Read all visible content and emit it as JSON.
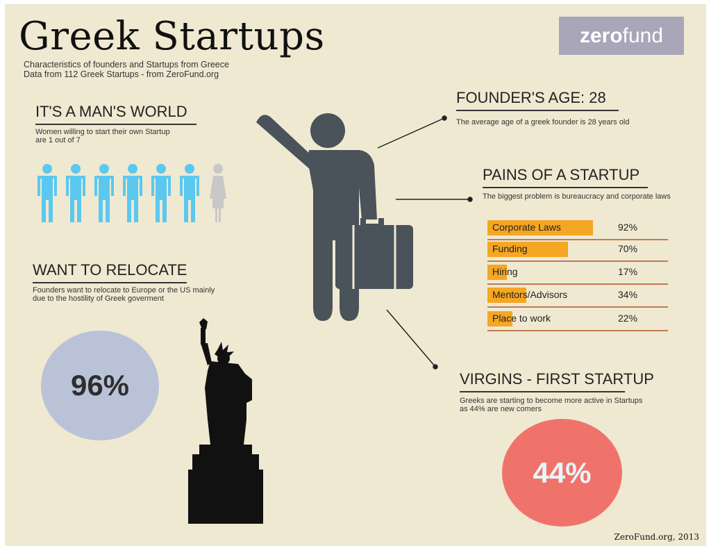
{
  "header": {
    "title": "Greek Startups",
    "subtitle_line1": "Characteristics of founders and Startups from Greece",
    "subtitle_line2": "Data from 112 Greek Startups - from ZeroFund.org"
  },
  "logo": {
    "bold": "zero",
    "light": "fund"
  },
  "mans_world": {
    "heading": "IT'S A MAN'S WORLD",
    "text_line1": "Women willing to start their own Startup",
    "text_line2": "are 1 out of 7",
    "men_count": 6,
    "women_count": 1,
    "male_color": "#5bc8f0",
    "female_color": "#c8c8c8"
  },
  "relocate": {
    "heading": "WANT TO RELOCATE",
    "text_line1": "Founders want to relocate to Europe or the US mainly",
    "text_line2": "due to the hostility of Greek goverment",
    "value": "96%",
    "bubble_color": "#b9c2d6"
  },
  "founders_age": {
    "heading": "FOUNDER'S AGE: 28",
    "text": "The average age of a greek founder is 28 years old"
  },
  "pains": {
    "heading": "PAINS OF A STARTUP",
    "text": "The biggest problem is bureaucracy and corporate laws"
  },
  "virgins": {
    "heading": "VIRGINS - FIRST STARTUP",
    "text_line1": "Greeks are starting to become more active in Startups",
    "text_line2": "as 44% are new comers",
    "value": "44%",
    "bubble_color": "#f0736b"
  },
  "chart_data": {
    "type": "bar",
    "orientation": "horizontal",
    "categories": [
      "Corporate Laws",
      "Funding",
      "Hiring",
      "Mentors/Advisors",
      "Place to work"
    ],
    "values": [
      92,
      70,
      17,
      34,
      22
    ],
    "labels": [
      "92%",
      "70%",
      "17%",
      "34%",
      "22%"
    ],
    "xlim": [
      0,
      100
    ],
    "color": "#f5a623"
  },
  "footer": "ZeroFund.org, 2013",
  "colors": {
    "background": "#efe9d2",
    "figure": "#4a525a",
    "statue": "#111111"
  }
}
